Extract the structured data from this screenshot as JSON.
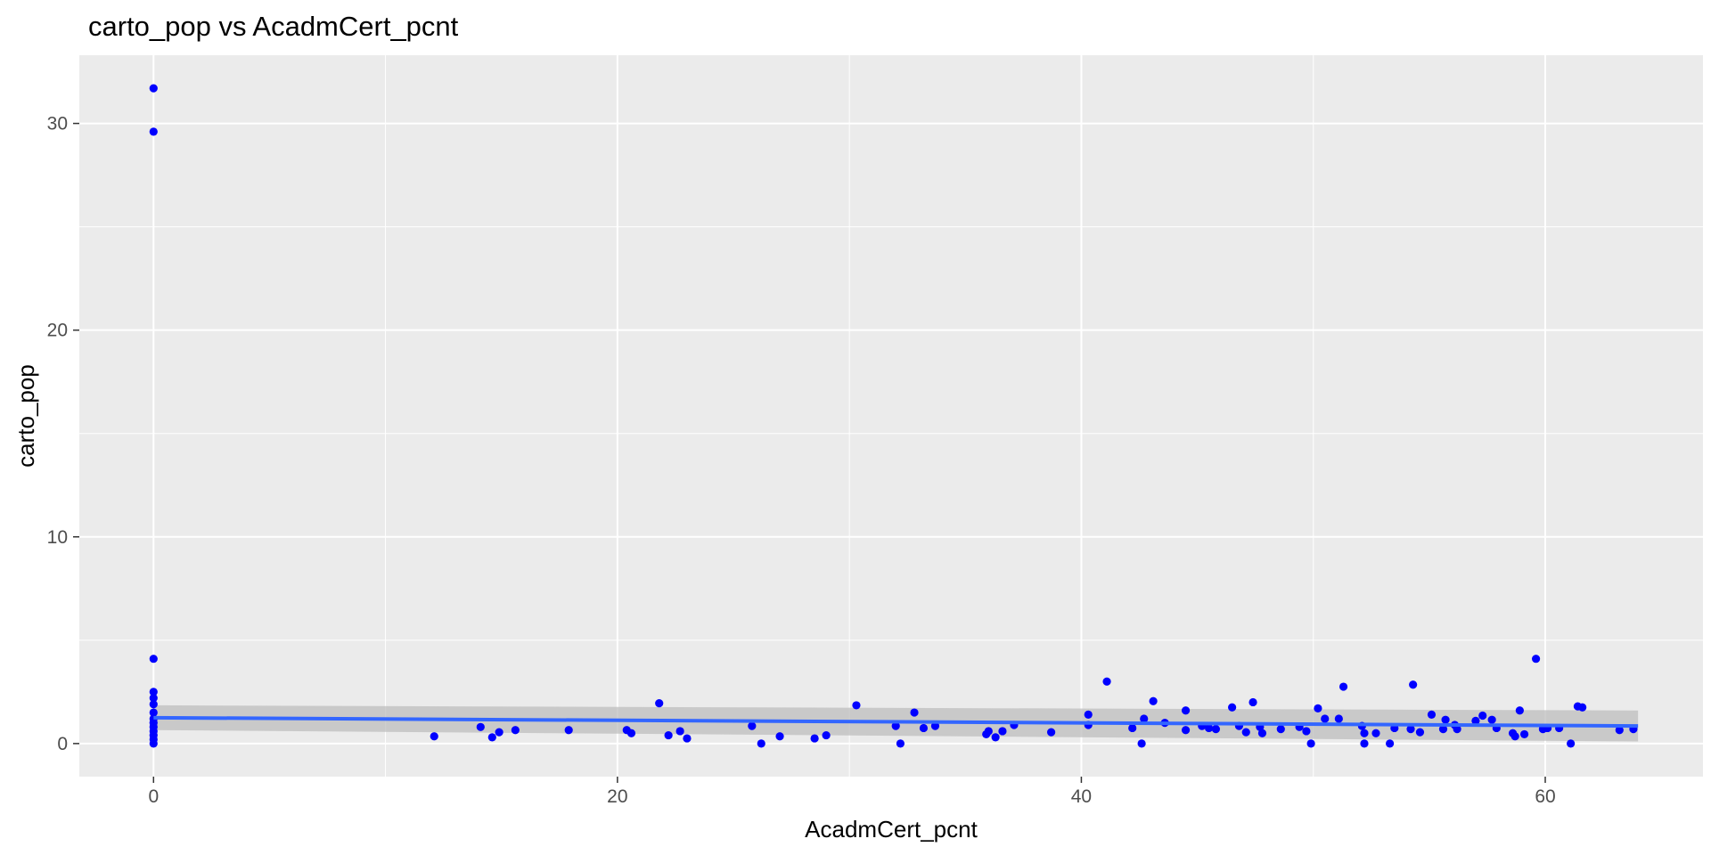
{
  "chart_data": {
    "type": "scatter",
    "title": "carto_pop vs AcadmCert_pcnt",
    "xlabel": "AcadmCert_pcnt",
    "ylabel": "carto_pop",
    "xlim": [
      -3.2,
      66.8
    ],
    "ylim": [
      -1.6,
      33.3
    ],
    "x_ticks": [
      0,
      20,
      40,
      60
    ],
    "y_ticks": [
      0,
      10,
      20,
      30
    ],
    "x_tick_labels": [
      "0",
      "20",
      "40",
      "60"
    ],
    "y_tick_labels": [
      "0",
      "10",
      "20",
      "30"
    ],
    "grid": true,
    "legend": "none",
    "colors": {
      "panel_background": "#ebebeb",
      "grid": "#ffffff",
      "points": "#0000ff",
      "trend_line": "#3366ff",
      "confidence_band": "#bdbdbd"
    },
    "trend": {
      "method": "linear",
      "x": [
        0,
        64
      ],
      "y": [
        1.25,
        0.85
      ],
      "ci_lower": [
        0.65,
        0.1
      ],
      "ci_upper": [
        1.85,
        1.6
      ]
    },
    "series": [
      {
        "points": [
          {
            "x": 0,
            "y": 31.7
          },
          {
            "x": 0,
            "y": 29.6
          },
          {
            "x": 0,
            "y": 4.1
          },
          {
            "x": 0,
            "y": 2.5
          },
          {
            "x": 0,
            "y": 2.2
          },
          {
            "x": 0,
            "y": 1.9
          },
          {
            "x": 0,
            "y": 1.5
          },
          {
            "x": 0,
            "y": 1.2
          },
          {
            "x": 0,
            "y": 1.0
          },
          {
            "x": 0,
            "y": 0.8
          },
          {
            "x": 0,
            "y": 0.6
          },
          {
            "x": 0,
            "y": 0.4
          },
          {
            "x": 0,
            "y": 0.2
          },
          {
            "x": 0,
            "y": 0.0
          },
          {
            "x": 12.1,
            "y": 0.35
          },
          {
            "x": 14.1,
            "y": 0.8
          },
          {
            "x": 14.6,
            "y": 0.3
          },
          {
            "x": 14.9,
            "y": 0.55
          },
          {
            "x": 15.6,
            "y": 0.65
          },
          {
            "x": 17.9,
            "y": 0.65
          },
          {
            "x": 20.4,
            "y": 0.65
          },
          {
            "x": 20.6,
            "y": 0.5
          },
          {
            "x": 21.8,
            "y": 1.95
          },
          {
            "x": 22.2,
            "y": 0.4
          },
          {
            "x": 22.7,
            "y": 0.6
          },
          {
            "x": 23.0,
            "y": 0.25
          },
          {
            "x": 25.8,
            "y": 0.85
          },
          {
            "x": 26.2,
            "y": 0.0
          },
          {
            "x": 27.0,
            "y": 0.35
          },
          {
            "x": 28.5,
            "y": 0.25
          },
          {
            "x": 29.0,
            "y": 0.4
          },
          {
            "x": 30.3,
            "y": 1.85
          },
          {
            "x": 32.0,
            "y": 0.85
          },
          {
            "x": 32.2,
            "y": 0.0
          },
          {
            "x": 32.8,
            "y": 1.5
          },
          {
            "x": 33.2,
            "y": 0.75
          },
          {
            "x": 33.7,
            "y": 0.85
          },
          {
            "x": 35.9,
            "y": 0.45
          },
          {
            "x": 36.0,
            "y": 0.6
          },
          {
            "x": 36.3,
            "y": 0.3
          },
          {
            "x": 36.6,
            "y": 0.6
          },
          {
            "x": 37.1,
            "y": 0.9
          },
          {
            "x": 38.7,
            "y": 0.55
          },
          {
            "x": 40.3,
            "y": 0.9
          },
          {
            "x": 40.3,
            "y": 1.4
          },
          {
            "x": 41.1,
            "y": 3.0
          },
          {
            "x": 42.2,
            "y": 0.75
          },
          {
            "x": 42.6,
            "y": 0.0
          },
          {
            "x": 42.7,
            "y": 1.2
          },
          {
            "x": 43.1,
            "y": 2.05
          },
          {
            "x": 43.6,
            "y": 1.0
          },
          {
            "x": 44.5,
            "y": 1.6
          },
          {
            "x": 44.5,
            "y": 0.65
          },
          {
            "x": 45.2,
            "y": 0.85
          },
          {
            "x": 45.5,
            "y": 0.75
          },
          {
            "x": 45.8,
            "y": 0.7
          },
          {
            "x": 46.5,
            "y": 1.75
          },
          {
            "x": 46.8,
            "y": 0.85
          },
          {
            "x": 47.1,
            "y": 0.55
          },
          {
            "x": 47.4,
            "y": 2.0
          },
          {
            "x": 47.7,
            "y": 0.8
          },
          {
            "x": 47.8,
            "y": 0.5
          },
          {
            "x": 48.6,
            "y": 0.7
          },
          {
            "x": 49.4,
            "y": 0.8
          },
          {
            "x": 49.7,
            "y": 0.6
          },
          {
            "x": 49.9,
            "y": 0.0
          },
          {
            "x": 50.2,
            "y": 1.7
          },
          {
            "x": 50.5,
            "y": 1.2
          },
          {
            "x": 51.1,
            "y": 1.2
          },
          {
            "x": 51.3,
            "y": 2.75
          },
          {
            "x": 52.1,
            "y": 0.85
          },
          {
            "x": 52.2,
            "y": 0.5
          },
          {
            "x": 52.2,
            "y": 0.0
          },
          {
            "x": 52.7,
            "y": 0.5
          },
          {
            "x": 53.3,
            "y": 0.0
          },
          {
            "x": 53.5,
            "y": 0.75
          },
          {
            "x": 54.2,
            "y": 0.7
          },
          {
            "x": 54.3,
            "y": 2.85
          },
          {
            "x": 54.6,
            "y": 0.55
          },
          {
            "x": 55.1,
            "y": 1.4
          },
          {
            "x": 55.6,
            "y": 0.7
          },
          {
            "x": 55.7,
            "y": 1.15
          },
          {
            "x": 56.1,
            "y": 0.9
          },
          {
            "x": 56.2,
            "y": 0.7
          },
          {
            "x": 57.0,
            "y": 1.1
          },
          {
            "x": 57.3,
            "y": 1.35
          },
          {
            "x": 57.7,
            "y": 1.15
          },
          {
            "x": 57.9,
            "y": 0.75
          },
          {
            "x": 58.6,
            "y": 0.5
          },
          {
            "x": 58.7,
            "y": 0.35
          },
          {
            "x": 58.9,
            "y": 1.6
          },
          {
            "x": 59.1,
            "y": 0.45
          },
          {
            "x": 59.6,
            "y": 4.1
          },
          {
            "x": 59.9,
            "y": 0.7
          },
          {
            "x": 60.1,
            "y": 0.75
          },
          {
            "x": 60.6,
            "y": 0.75
          },
          {
            "x": 61.1,
            "y": 0.0
          },
          {
            "x": 61.4,
            "y": 1.8
          },
          {
            "x": 61.6,
            "y": 1.75
          },
          {
            "x": 63.2,
            "y": 0.65
          },
          {
            "x": 63.8,
            "y": 0.7
          }
        ]
      }
    ]
  }
}
